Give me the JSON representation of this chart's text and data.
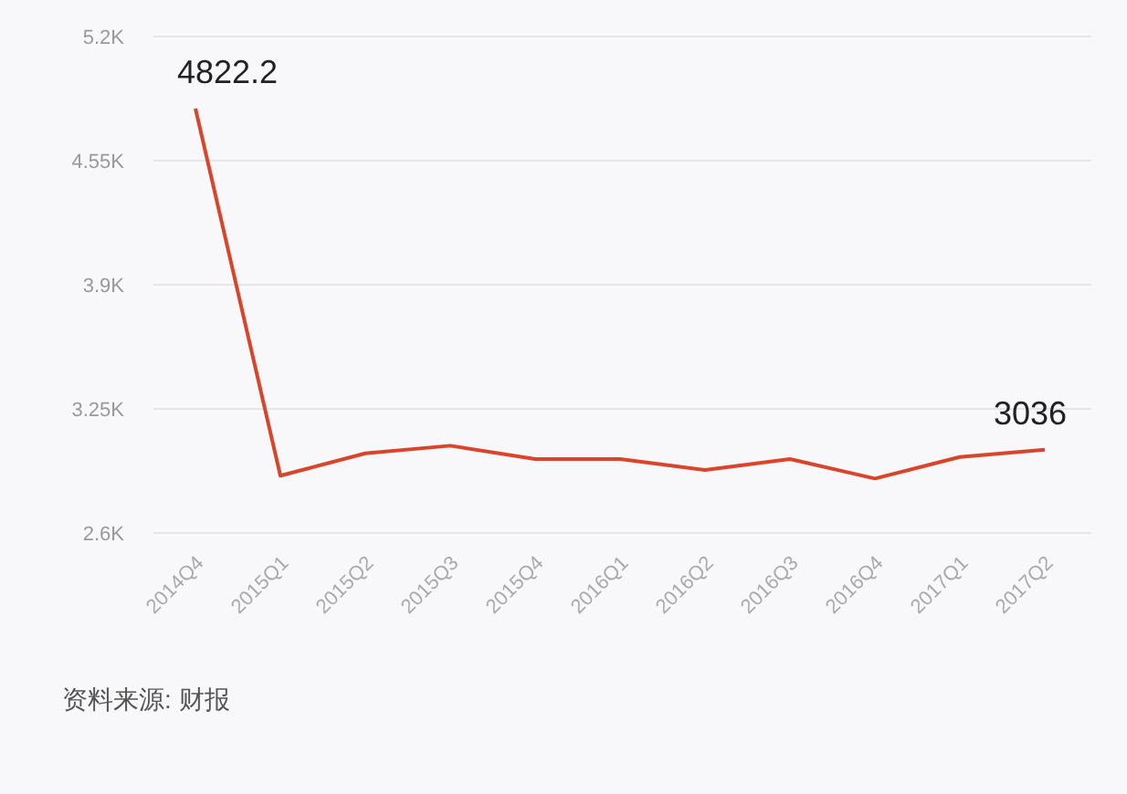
{
  "chart_data": {
    "type": "line",
    "categories": [
      "2014Q4",
      "2015Q1",
      "2015Q2",
      "2015Q3",
      "2015Q4",
      "2016Q1",
      "2016Q2",
      "2016Q3",
      "2016Q4",
      "2017Q1",
      "2017Q2"
    ],
    "series": [
      {
        "color": "#d9452b",
        "values": [
          4822.2,
          2900,
          3017,
          3057,
          2987,
          2987,
          2930,
          2987,
          2885,
          2998,
          3036
        ],
        "value_labels": [
          "4822.2",
          null,
          null,
          null,
          null,
          null,
          null,
          null,
          null,
          null,
          "3036"
        ]
      }
    ],
    "ylim": [
      2600,
      5200
    ],
    "yticks": [
      {
        "value": 2600,
        "label": "2.6K"
      },
      {
        "value": 3250,
        "label": "3.25K"
      },
      {
        "value": 3900,
        "label": "3.9K"
      },
      {
        "value": 4550,
        "label": "4.55K"
      },
      {
        "value": 5200,
        "label": "5.2K"
      }
    ],
    "grid": "y",
    "annotations": [
      "资料来源: 财报"
    ]
  }
}
